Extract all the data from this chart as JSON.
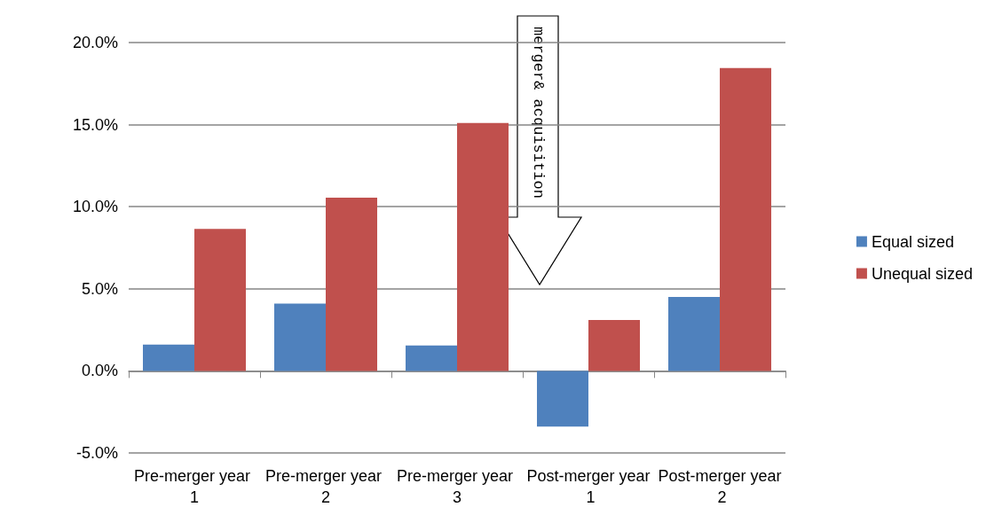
{
  "chart_data": {
    "type": "bar",
    "categories": [
      "Pre-merger year 1",
      "Pre-merger year 2",
      "Pre-merger year 3",
      "Post-merger year 1",
      "Post-merger year 2"
    ],
    "series": [
      {
        "name": "Equal sized",
        "color": "#4f81bd",
        "values": [
          1.6,
          4.1,
          1.55,
          -3.4,
          4.5
        ]
      },
      {
        "name": "Unequal sized",
        "color": "#c0504d",
        "values": [
          8.65,
          10.55,
          15.1,
          3.1,
          18.45
        ]
      }
    ],
    "ylim": [
      -5,
      20
    ],
    "yticks": [
      {
        "value": -5,
        "label": "-5.0%"
      },
      {
        "value": 0,
        "label": "0.0%"
      },
      {
        "value": 5,
        "label": "5.0%"
      },
      {
        "value": 10,
        "label": "10.0%"
      },
      {
        "value": 15,
        "label": "15.0%"
      },
      {
        "value": 20,
        "label": "20.0%"
      }
    ],
    "grid": "y",
    "legend": "right",
    "annotations": [
      "merger& acquisition"
    ]
  }
}
